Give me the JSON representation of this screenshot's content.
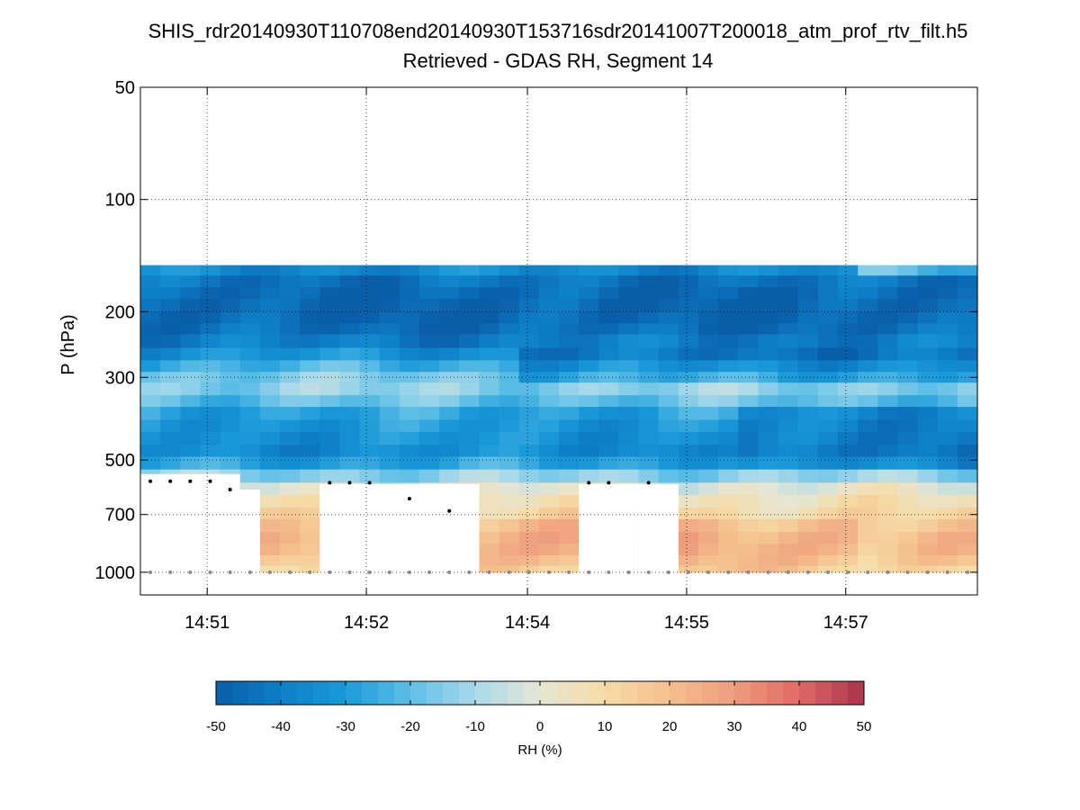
{
  "chart_data": {
    "type": "heatmap",
    "title": "SHIS_rdr20140930T110708end20140930T153716sdr20141007T200018_atm_prof_rtv_filt.h5",
    "subtitle": "Retrieved - GDAS RH, Segment 14",
    "ylabel": "P (hPa)",
    "y_scale": "log",
    "y_reversed": true,
    "ylim": [
      50,
      1150
    ],
    "yticks": [
      50,
      100,
      200,
      300,
      500,
      700,
      1000
    ],
    "ytick_labels": [
      "50",
      "100",
      "200",
      "300",
      "500",
      "700",
      "1000"
    ],
    "x_time_range": [
      "14:50:17",
      "14:57:23"
    ],
    "xticks": [
      "14:50:51",
      "14:52:12",
      "14:53:34",
      "14:54:55",
      "14:56:16"
    ],
    "xtick_labels": [
      "14:51",
      "14:52",
      "14:54",
      "14:55",
      "14:57"
    ],
    "grid": true,
    "colorbar": {
      "label": "RH (%)",
      "limits": [
        -50,
        50
      ],
      "ticks": [
        -50,
        -40,
        -30,
        -20,
        -10,
        0,
        10,
        20,
        30,
        40,
        50
      ],
      "tick_labels": [
        "-50",
        "-40",
        "-30",
        "-20",
        "-10",
        "0",
        "10",
        "20",
        "30",
        "40",
        "50"
      ],
      "colors": [
        "#0a5ea8",
        "#0d7fc7",
        "#1a9ad9",
        "#5fbfe6",
        "#a8d9ea",
        "#e6e6d3",
        "#f6dca6",
        "#f4bf8c",
        "#ee9c7d",
        "#e06a66",
        "#a8324a"
      ],
      "placement": "bottom"
    },
    "data_top_hPa": 150,
    "columns": 42,
    "profile_levels_hPa": [
      150,
      160,
      172,
      185,
      200,
      215,
      230,
      250,
      270,
      290,
      310,
      335,
      360,
      390,
      420,
      455,
      490,
      530,
      575,
      620,
      670,
      720,
      780,
      840,
      900,
      960,
      1000
    ],
    "profile_rh_diff": [
      -30,
      -42,
      -46,
      -48,
      -48,
      -47,
      -44,
      -38,
      -28,
      -20,
      -12,
      -15,
      -24,
      -32,
      -30,
      -36,
      -34,
      -22,
      -5,
      4,
      8,
      12,
      17,
      20,
      18,
      14,
      10
    ],
    "surface_pressure_hPa": 1000,
    "cloud_gaps": [
      {
        "col_start": 0,
        "col_end": 4,
        "top_hPa": 545
      },
      {
        "col_start": 4,
        "col_end": 5,
        "top_hPa": 600
      },
      {
        "col_start": 9,
        "col_end": 15,
        "top_hPa": 580
      },
      {
        "col_start": 15,
        "col_end": 16,
        "top_hPa": 580
      },
      {
        "col_start": 16,
        "col_end": 16,
        "top_hPa": 680
      },
      {
        "col_start": 22,
        "col_end": 24,
        "top_hPa": 580
      },
      {
        "col_start": 25,
        "col_end": 26,
        "top_hPa": 580
      }
    ],
    "cloud_top_markers": [
      {
        "col": 0,
        "p": 570
      },
      {
        "col": 1,
        "p": 570
      },
      {
        "col": 2,
        "p": 570
      },
      {
        "col": 3,
        "p": 570
      },
      {
        "col": 4,
        "p": 600
      },
      {
        "col": 9,
        "p": 575
      },
      {
        "col": 10,
        "p": 575
      },
      {
        "col": 11,
        "p": 575
      },
      {
        "col": 13,
        "p": 635
      },
      {
        "col": 15,
        "p": 685
      },
      {
        "col": 22,
        "p": 575
      },
      {
        "col": 23,
        "p": 575
      },
      {
        "col": 25,
        "p": 575
      }
    ]
  }
}
